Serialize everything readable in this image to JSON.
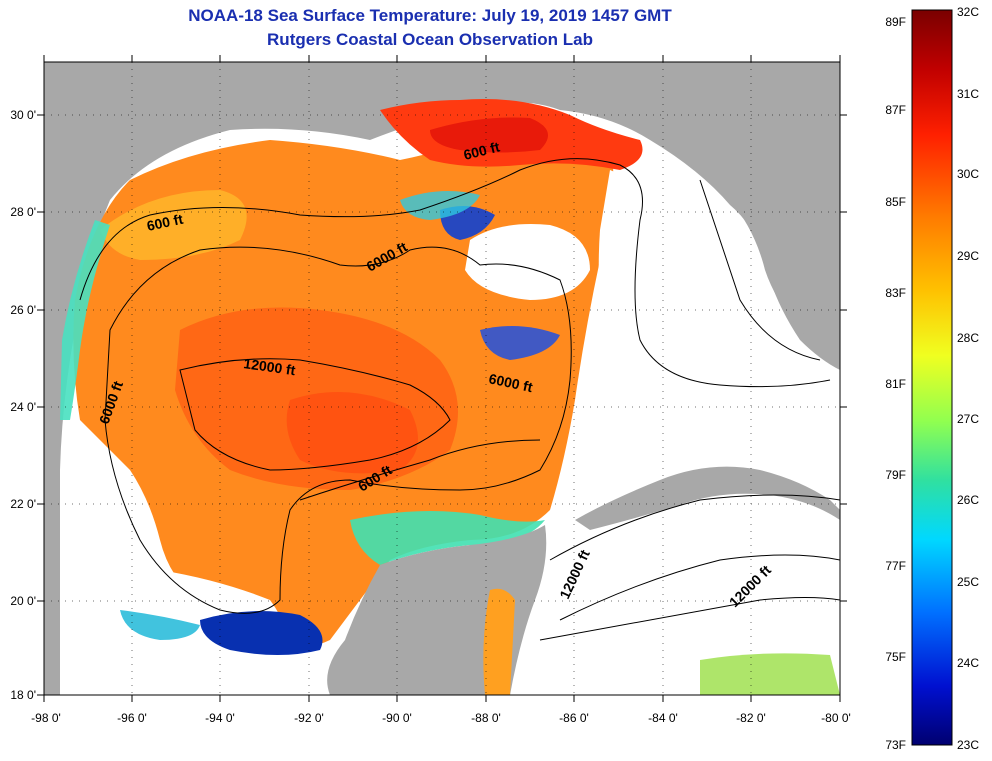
{
  "title": "NOAA-18 Sea Surface Temperature:  July 19, 2019 1457 GMT",
  "subtitle": "Rutgers Coastal Ocean Observation Lab",
  "map": {
    "lon_range": [
      -98,
      -80
    ],
    "lat_range": [
      18,
      31
    ],
    "x_ticks": [
      "-98 0'",
      "-96 0'",
      "-94 0'",
      "-92 0'",
      "-90 0'",
      "-88 0'",
      "-86 0'",
      "-84 0'",
      "-82 0'",
      "-80 0'"
    ],
    "y_ticks": [
      "30 0'",
      "28 0'",
      "26 0'",
      "24 0'",
      "22 0'",
      "20 0'",
      "18 0'"
    ],
    "contour_labels": [
      "600 ft",
      "600 ft",
      "6000 ft",
      "12000 ft",
      "6000 ft",
      "6000 ft",
      "600 ft",
      "12000 ft",
      "12000 ft"
    ]
  },
  "colorbar": {
    "fahrenheit": [
      "89F",
      "87F",
      "85F",
      "83F",
      "81F",
      "79F",
      "77F",
      "75F",
      "73F"
    ],
    "celsius": [
      "32C",
      "31C",
      "30C",
      "29C",
      "28C",
      "27C",
      "26C",
      "25C",
      "24C",
      "23C"
    ],
    "colors": [
      "#7a0000",
      "#d40000",
      "#ff4000",
      "#ff9a00",
      "#ffe800",
      "#a0ff40",
      "#30e0a0",
      "#00d8ff",
      "#0070ff",
      "#0010d0",
      "#000080"
    ]
  },
  "palette": {
    "land": "#a8a8a8",
    "cloud": "#ffffff",
    "title": "#1a2fb0"
  }
}
